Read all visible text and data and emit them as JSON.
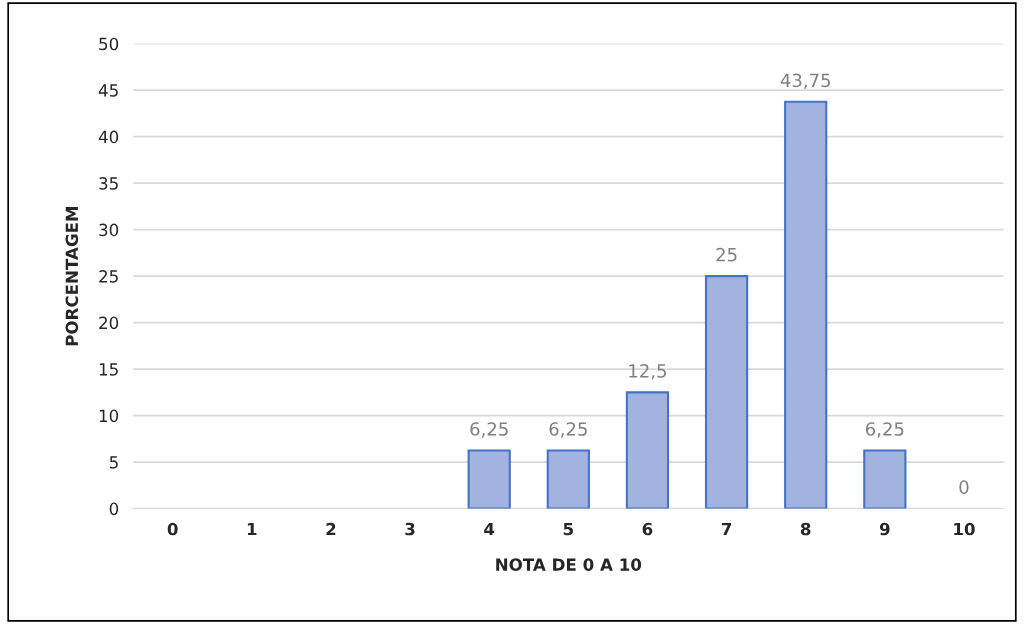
{
  "chart_data": {
    "type": "bar",
    "categories": [
      "0",
      "1",
      "2",
      "3",
      "4",
      "5",
      "6",
      "7",
      "8",
      "9",
      "10"
    ],
    "values": [
      null,
      null,
      null,
      null,
      6.25,
      6.25,
      12.5,
      25,
      43.75,
      6.25,
      0
    ],
    "value_labels": [
      null,
      null,
      null,
      null,
      "6,25",
      "6,25",
      "12,5",
      "25",
      "43,75",
      "6,25",
      "0"
    ],
    "color": "#a3b3e0",
    "xlabel": "NOTA DE 0 A 10",
    "ylabel": "PORCENTAGEM",
    "ylim": [
      0,
      50
    ],
    "yticks": [
      0,
      5,
      10,
      15,
      20,
      25,
      30,
      35,
      40,
      45,
      50
    ],
    "grid": "y",
    "legend": false
  }
}
